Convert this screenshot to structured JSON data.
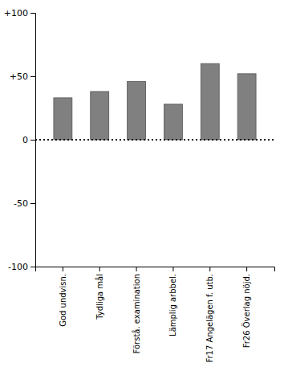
{
  "chart_data": {
    "type": "bar",
    "categories": [
      "God undvisn.",
      "Tydliga mål",
      "Förstå. examination",
      "Lämplig arbbel.",
      "Fr17 Angelägen f. utb.",
      "Fr26 Överlag nöjd."
    ],
    "values": [
      33,
      38,
      46,
      28,
      60,
      52
    ],
    "color": "#808080",
    "ylim": [
      -100,
      100
    ],
    "yticks": [
      -100,
      -50,
      0,
      {
        "value": 50,
        "label": "+50"
      },
      {
        "value": 100,
        "label": "+100"
      }
    ],
    "reference_line_y": 0,
    "grid": false
  }
}
